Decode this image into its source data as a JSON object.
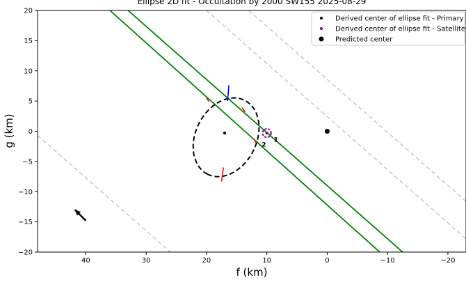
{
  "chart_data": {
    "type": "scatter",
    "title": "Ellipse 2D fit - Occultation by 2000 SW155 2025-08-29",
    "xlabel": "f (km)",
    "ylabel": "g (km)",
    "xlim": [
      48,
      -23
    ],
    "ylim": [
      -20,
      20
    ],
    "x_ticks": [
      40,
      30,
      20,
      10,
      0,
      -10,
      -20
    ],
    "x_tick_labels": [
      "40",
      "30",
      "20",
      "10",
      "0",
      "−10",
      "−20"
    ],
    "y_ticks": [
      20,
      15,
      10,
      5,
      0,
      -5,
      -10,
      -15,
      -20
    ],
    "y_tick_labels": [
      "20",
      "15",
      "10",
      "5",
      "0",
      "−5",
      "−10",
      "−15",
      "−20"
    ],
    "grid": false,
    "legend_position": "top-right",
    "legend": [
      {
        "label": "Derived center of ellipse fit - Primary",
        "marker": "small-dot",
        "color": "#000000"
      },
      {
        "label": "Derived center of ellipse fit - Satellite",
        "marker": "small-dot",
        "color": "#800080"
      },
      {
        "label": "Predicted center",
        "marker": "large-dot",
        "color": "#000000"
      }
    ],
    "primary_center": {
      "f": 17.0,
      "g": -0.3
    },
    "satellite_center": {
      "f": 10.0,
      "g": -0.3
    },
    "predicted_center": {
      "f": 0.0,
      "g": 0.0
    },
    "ellipse": {
      "center_f": 17.0,
      "center_g": -0.3,
      "points": [
        [
          15.0,
          5.5
        ],
        [
          11.3,
          0.5
        ],
        [
          14.5,
          -6.1
        ],
        [
          22.2,
          -3.0
        ],
        [
          18.9,
          4.2
        ]
      ]
    },
    "satellite_circle": {
      "f": 10.0,
      "g": -0.3,
      "radius_km": 0.7,
      "color": "#800080"
    },
    "chords": [
      {
        "label": "1",
        "color": "#008000",
        "points": [
          [
            33.0,
            20.0
          ],
          [
            -12.5,
            -20.0
          ]
        ],
        "label_at": [
          8.5,
          -1.4
        ]
      },
      {
        "label": "2",
        "color": "#008000",
        "points": [
          [
            36.0,
            20.0
          ],
          [
            -8.7,
            -20.0
          ]
        ],
        "label_at": [
          10.5,
          -2.2
        ]
      }
    ],
    "reference_lines": {
      "color": "#c8c8c8",
      "style": "dashed",
      "lines": [
        [
          [
            48.0,
            -0.7
          ],
          [
            26.0,
            -20.0
          ]
        ],
        [
          [
            20.0,
            20.0
          ],
          [
            -23.0,
            -17.8
          ]
        ],
        [
          [
            13.0,
            20.0
          ],
          [
            -23.0,
            -11.6
          ]
        ]
      ]
    },
    "error_ticks": [
      {
        "color": "#0000ff",
        "points": [
          [
            16.5,
            5.0
          ],
          [
            16.3,
            7.6
          ]
        ]
      },
      {
        "color": "#ff0000",
        "points": [
          [
            17.2,
            -6.0
          ],
          [
            17.5,
            -8.3
          ]
        ]
      },
      {
        "color": "#ff0000",
        "points": [
          [
            20.0,
            5.5
          ],
          [
            19.6,
            4.9
          ]
        ]
      },
      {
        "color": "#ff0000",
        "points": [
          [
            14.1,
            3.9
          ],
          [
            13.6,
            3.2
          ]
        ]
      },
      {
        "color": "#ff0000",
        "points": [
          [
            12.2,
            -1.2
          ],
          [
            11.8,
            -1.9
          ]
        ]
      }
    ],
    "direction_arrow": {
      "from": [
        40.0,
        -14.8
      ],
      "to": [
        41.8,
        -13.0
      ],
      "color": "#000000"
    }
  }
}
